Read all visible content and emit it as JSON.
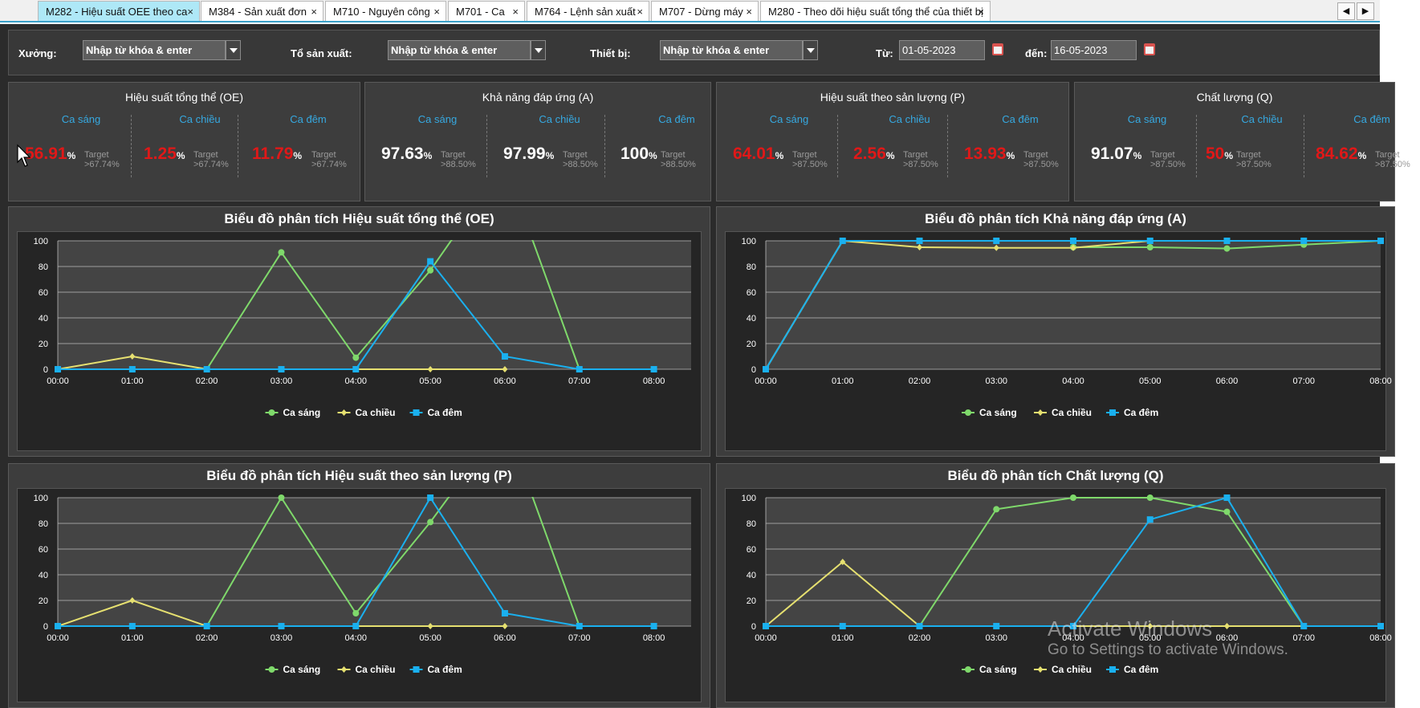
{
  "tabs": [
    {
      "label": "M282 - Hiệu suất OEE theo ca",
      "active": true
    },
    {
      "label": "M384 - Sản xuất đơn"
    },
    {
      "label": "M710 - Nguyên công"
    },
    {
      "label": "M701 - Ca"
    },
    {
      "label": "M764 - Lệnh sản xuất"
    },
    {
      "label": "M707 - Dừng máy"
    },
    {
      "label": "M280 - Theo dõi hiệu suất tổng thể của thiết bị"
    }
  ],
  "tab_close_glyph": "×",
  "nav": {
    "prev": "◀",
    "next": "▶"
  },
  "filters": {
    "xuong": {
      "label": "Xưởng:",
      "value": "Nhập từ khóa & enter"
    },
    "to": {
      "label": "Tổ sản xuất:",
      "value": "Nhập từ khóa & enter"
    },
    "thietbi": {
      "label": "Thiết bị:",
      "value": "Nhập từ khóa & enter"
    },
    "tu": {
      "label": "Từ:",
      "value": "01-05-2023"
    },
    "den": {
      "label": "đến:",
      "value": "16-05-2023"
    }
  },
  "colors": {
    "ca_sang": "#7fd96b",
    "ca_chieu": "#e6e070",
    "ca_dem": "#1ab0ef",
    "bad": "#e01818",
    "good": "#ffffff",
    "label": "#36a9e1"
  },
  "kpis": [
    {
      "title": "Hiệu suất tổng thể (OE)",
      "shifts": [
        {
          "name": "Ca sáng",
          "value": "56.91",
          "unit": "%",
          "target_label": "Target",
          "target": ">67.74%",
          "bad": true
        },
        {
          "name": "Ca chiều",
          "value": "1.25",
          "unit": "%",
          "target_label": "Target",
          "target": ">67.74%",
          "bad": true
        },
        {
          "name": "Ca đêm",
          "value": "11.79",
          "unit": "%",
          "target_label": "Target",
          "target": ">67.74%",
          "bad": true
        }
      ]
    },
    {
      "title": "Khả năng đáp ứng (A)",
      "shifts": [
        {
          "name": "Ca sáng",
          "value": "97.63",
          "unit": "%",
          "target_label": "Target",
          "target": ">88.50%",
          "bad": false
        },
        {
          "name": "Ca chiều",
          "value": "97.99",
          "unit": "%",
          "target_label": "Target",
          "target": ">88.50%",
          "bad": false
        },
        {
          "name": "Ca đêm",
          "value": "100",
          "unit": "%",
          "target_label": "Target",
          "target": ">88.50%",
          "bad": false
        }
      ]
    },
    {
      "title": "Hiệu suất theo sản lượng (P)",
      "shifts": [
        {
          "name": "Ca sáng",
          "value": "64.01",
          "unit": "%",
          "target_label": "Target",
          "target": ">87.50%",
          "bad": true
        },
        {
          "name": "Ca chiều",
          "value": "2.56",
          "unit": "%",
          "target_label": "Target",
          "target": ">87.50%",
          "bad": true
        },
        {
          "name": "Ca đêm",
          "value": "13.93",
          "unit": "%",
          "target_label": "Target",
          "target": ">87.50%",
          "bad": true
        }
      ]
    },
    {
      "title": "Chất lượng (Q)",
      "shifts": [
        {
          "name": "Ca sáng",
          "value": "91.07",
          "unit": "%",
          "target_label": "Target",
          "target": ">87.50%",
          "bad": false
        },
        {
          "name": "Ca chiều",
          "value": "50",
          "unit": "%",
          "target_label": "Target",
          "target": ">87.50%",
          "bad": true
        },
        {
          "name": "Ca đêm",
          "value": "84.62",
          "unit": "%",
          "target_label": "Target",
          "target": ">87.50%",
          "bad": true
        }
      ]
    }
  ],
  "chart_data": [
    {
      "type": "line",
      "title": "Biểu đồ phân tích Hiệu suất tổng thể (OE)",
      "x": [
        "00:00",
        "01:00",
        "02:00",
        "03:00",
        "04:00",
        "05:00",
        "06:00",
        "07:00",
        "08:00"
      ],
      "ylim": [
        0,
        100
      ],
      "yticks": [
        0,
        20,
        40,
        60,
        80,
        100
      ],
      "grid": true,
      "legend": "bottom-center",
      "series": [
        {
          "name": "Ca sáng",
          "values": [
            0,
            null,
            0,
            91,
            9,
            77,
            null,
            0,
            null
          ],
          "overflow": [
            [
              5,
              6,
              160
            ],
            [
              6,
              7,
              160
            ]
          ]
        },
        {
          "name": "Ca chiều",
          "values": [
            0,
            10,
            0,
            null,
            0,
            0,
            0,
            null,
            null
          ]
        },
        {
          "name": "Ca đêm",
          "values": [
            0,
            0,
            0,
            0,
            0,
            84,
            10,
            0,
            0
          ]
        }
      ]
    },
    {
      "type": "line",
      "title": "Biểu đồ phân tích Khả năng đáp ứng (A)",
      "x": [
        "00:00",
        "01:00",
        "02:00",
        "03:00",
        "04:00",
        "05:00",
        "06:00",
        "07:00",
        "08:00"
      ],
      "ylim": [
        0,
        100
      ],
      "yticks": [
        0,
        20,
        40,
        60,
        80,
        100
      ],
      "grid": true,
      "legend": "bottom-center",
      "series": [
        {
          "name": "Ca sáng",
          "values": [
            0,
            100,
            null,
            null,
            95,
            95,
            94,
            97,
            100
          ]
        },
        {
          "name": "Ca chiều",
          "values": [
            0,
            100,
            95,
            94.5,
            94.5,
            100,
            null,
            null,
            null
          ]
        },
        {
          "name": "Ca đêm",
          "values": [
            0,
            100,
            100,
            100,
            100,
            100,
            100,
            100,
            100
          ]
        }
      ]
    },
    {
      "type": "line",
      "title": "Biểu đồ phân tích Hiệu suất theo sản lượng (P)",
      "x": [
        "00:00",
        "01:00",
        "02:00",
        "03:00",
        "04:00",
        "05:00",
        "06:00",
        "07:00",
        "08:00"
      ],
      "ylim": [
        0,
        100
      ],
      "yticks": [
        0,
        20,
        40,
        60,
        80,
        100
      ],
      "grid": true,
      "legend": "bottom-center",
      "series": [
        {
          "name": "Ca sáng",
          "values": [
            0,
            null,
            0,
            100,
            10,
            81,
            null,
            0,
            null
          ],
          "overflow": [
            [
              5,
              6,
              160
            ],
            [
              6,
              7,
              160
            ]
          ]
        },
        {
          "name": "Ca chiều",
          "values": [
            0,
            20,
            0,
            null,
            0,
            0,
            0,
            null,
            null
          ]
        },
        {
          "name": "Ca đêm",
          "values": [
            0,
            0,
            0,
            0,
            0,
            100,
            10,
            0,
            0
          ]
        }
      ]
    },
    {
      "type": "line",
      "title": "Biểu đồ phân tích Chất lượng (Q)",
      "x": [
        "00:00",
        "01:00",
        "02:00",
        "03:00",
        "04:00",
        "05:00",
        "06:00",
        "07:00",
        "08:00"
      ],
      "ylim": [
        0,
        100
      ],
      "yticks": [
        0,
        20,
        40,
        60,
        80,
        100
      ],
      "grid": true,
      "legend": "bottom-center",
      "series": [
        {
          "name": "Ca sáng",
          "values": [
            0,
            null,
            0,
            91,
            100,
            100,
            89,
            0,
            null
          ]
        },
        {
          "name": "Ca chiều",
          "values": [
            0,
            50,
            0,
            null,
            0,
            0,
            0,
            0,
            null
          ]
        },
        {
          "name": "Ca đêm",
          "values": [
            0,
            0,
            0,
            0,
            0,
            83,
            100,
            0,
            0
          ]
        }
      ]
    }
  ],
  "watermark": {
    "line1": "Activate Windows",
    "line2": "Go to Settings to activate Windows."
  }
}
